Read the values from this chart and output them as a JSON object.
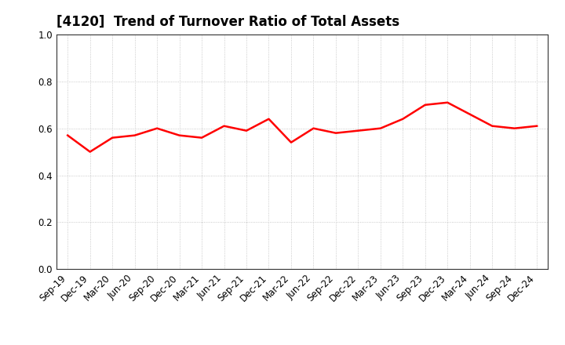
{
  "title": "[4120]  Trend of Turnover Ratio of Total Assets",
  "x_labels": [
    "Sep-19",
    "Dec-19",
    "Mar-20",
    "Jun-20",
    "Sep-20",
    "Dec-20",
    "Mar-21",
    "Jun-21",
    "Sep-21",
    "Dec-21",
    "Mar-22",
    "Jun-22",
    "Sep-22",
    "Dec-22",
    "Mar-23",
    "Jun-23",
    "Sep-23",
    "Dec-23",
    "Mar-24",
    "Jun-24",
    "Sep-24",
    "Dec-24"
  ],
  "values": [
    0.57,
    0.5,
    0.56,
    0.57,
    0.6,
    0.57,
    0.56,
    0.61,
    0.59,
    0.64,
    0.54,
    0.6,
    0.58,
    0.59,
    0.6,
    0.64,
    0.7,
    0.71,
    0.66,
    0.61,
    0.6,
    0.61
  ],
  "line_color": "#FF0000",
  "line_width": 1.8,
  "ylim": [
    0.0,
    1.0
  ],
  "yticks": [
    0.0,
    0.2,
    0.4,
    0.6,
    0.8,
    1.0
  ],
  "background_color": "#FFFFFF",
  "plot_bg_color": "#FFFFFF",
  "grid_color": "#BBBBBB",
  "title_fontsize": 12,
  "tick_fontsize": 8.5,
  "title_color": "#000000",
  "title_fontweight": "bold"
}
